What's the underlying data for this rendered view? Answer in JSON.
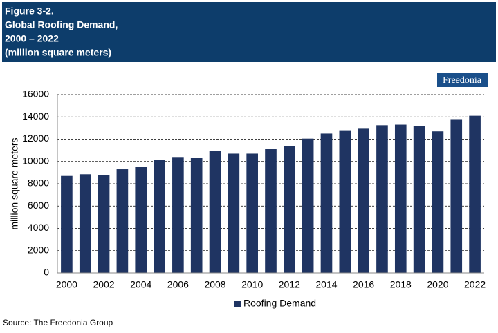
{
  "chart_data": {
    "type": "bar",
    "title": [
      "Figure 3-2.",
      "Global Roofing Demand,",
      "2000 – 2022",
      "(million square meters)"
    ],
    "logo": "Freedonia",
    "source": "Source: The Freedonia Group",
    "y_label": "million square meters",
    "categories": [
      "2000",
      null,
      "2002",
      null,
      "2004",
      null,
      "2006",
      null,
      "2008",
      null,
      "2010",
      null,
      "2012",
      null,
      "2014",
      null,
      "2016",
      null,
      "2018",
      null,
      "2020",
      null,
      "2022"
    ],
    "series": [
      {
        "name": "Roofing Demand",
        "color": "#1f3462",
        "values": [
          8700,
          8850,
          8750,
          9300,
          9500,
          10150,
          10400,
          10300,
          10950,
          10700,
          10700,
          11100,
          11400,
          12050,
          12500,
          12800,
          13000,
          13250,
          13300,
          13200,
          12700,
          13800,
          14100
        ]
      }
    ],
    "ylim": [
      0,
      16000
    ],
    "yticks": [
      0,
      2000,
      4000,
      6000,
      8000,
      10000,
      12000,
      14000,
      16000
    ],
    "grid": true,
    "legend": "bottom"
  }
}
